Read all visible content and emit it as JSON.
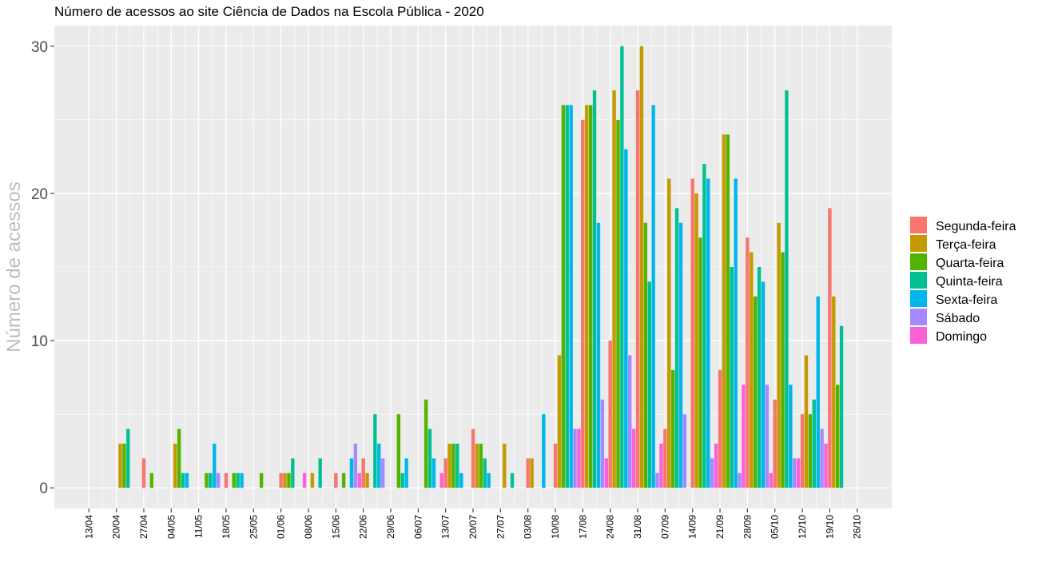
{
  "chart_data": {
    "type": "bar",
    "title": "Número de acessos ao site Ciência de Dados na Escola Pública - 2020",
    "xlabel": "",
    "ylabel": "Número de acessos",
    "ylim": [
      -1.4,
      31.4
    ],
    "yticks": [
      0,
      10,
      20,
      30
    ],
    "grid": true,
    "legend_position": "right",
    "x_start": "2020-04-13",
    "x_end": "2020-10-26",
    "x_tick_labels": [
      "13/04",
      "20/04",
      "27/04",
      "04/05",
      "11/05",
      "18/05",
      "25/05",
      "01/06",
      "08/06",
      "15/06",
      "22/06",
      "29/06",
      "06/07",
      "13/07",
      "20/07",
      "27/07",
      "03/08",
      "10/08",
      "17/08",
      "24/08",
      "31/08",
      "07/09",
      "14/09",
      "21/09",
      "28/09",
      "05/10",
      "12/10",
      "19/10",
      "26/10"
    ],
    "colors": {
      "Segunda-feira": "#F8766D",
      "Terça-feira": "#C49A00",
      "Quarta-feira": "#53B400",
      "Quinta-feira": "#00C094",
      "Sexta-feira": "#00B6EB",
      "Sábado": "#A58AFF",
      "Domingo": "#FB61D7"
    },
    "legend": [
      "Segunda-feira",
      "Terça-feira",
      "Quarta-feira",
      "Quinta-feira",
      "Sexta-feira",
      "Sábado",
      "Domingo"
    ],
    "points": [
      {
        "date": "2020-04-21",
        "weekday": "Terça-feira",
        "value": 3
      },
      {
        "date": "2020-04-22",
        "weekday": "Quarta-feira",
        "value": 3
      },
      {
        "date": "2020-04-23",
        "weekday": "Quinta-feira",
        "value": 4
      },
      {
        "date": "2020-04-27",
        "weekday": "Segunda-feira",
        "value": 2
      },
      {
        "date": "2020-04-29",
        "weekday": "Quarta-feira",
        "value": 1
      },
      {
        "date": "2020-05-05",
        "weekday": "Terça-feira",
        "value": 3
      },
      {
        "date": "2020-05-06",
        "weekday": "Quarta-feira",
        "value": 4
      },
      {
        "date": "2020-05-07",
        "weekday": "Quinta-feira",
        "value": 1
      },
      {
        "date": "2020-05-08",
        "weekday": "Sexta-feira",
        "value": 1
      },
      {
        "date": "2020-05-13",
        "weekday": "Quarta-feira",
        "value": 1
      },
      {
        "date": "2020-05-14",
        "weekday": "Quinta-feira",
        "value": 1
      },
      {
        "date": "2020-05-15",
        "weekday": "Sexta-feira",
        "value": 3
      },
      {
        "date": "2020-05-16",
        "weekday": "Sábado",
        "value": 1
      },
      {
        "date": "2020-05-18",
        "weekday": "Segunda-feira",
        "value": 1
      },
      {
        "date": "2020-05-20",
        "weekday": "Quarta-feira",
        "value": 1
      },
      {
        "date": "2020-05-21",
        "weekday": "Quinta-feira",
        "value": 1
      },
      {
        "date": "2020-05-22",
        "weekday": "Sexta-feira",
        "value": 1
      },
      {
        "date": "2020-05-27",
        "weekday": "Quarta-feira",
        "value": 1
      },
      {
        "date": "2020-06-01",
        "weekday": "Segunda-feira",
        "value": 1
      },
      {
        "date": "2020-06-02",
        "weekday": "Terça-feira",
        "value": 1
      },
      {
        "date": "2020-06-03",
        "weekday": "Quarta-feira",
        "value": 1
      },
      {
        "date": "2020-06-04",
        "weekday": "Quinta-feira",
        "value": 2
      },
      {
        "date": "2020-06-07",
        "weekday": "Domingo",
        "value": 1
      },
      {
        "date": "2020-06-09",
        "weekday": "Terça-feira",
        "value": 1
      },
      {
        "date": "2020-06-11",
        "weekday": "Quinta-feira",
        "value": 2
      },
      {
        "date": "2020-06-15",
        "weekday": "Segunda-feira",
        "value": 1
      },
      {
        "date": "2020-06-17",
        "weekday": "Quarta-feira",
        "value": 1
      },
      {
        "date": "2020-06-19",
        "weekday": "Sexta-feira",
        "value": 2
      },
      {
        "date": "2020-06-20",
        "weekday": "Sábado",
        "value": 3
      },
      {
        "date": "2020-06-21",
        "weekday": "Domingo",
        "value": 1
      },
      {
        "date": "2020-06-22",
        "weekday": "Segunda-feira",
        "value": 2
      },
      {
        "date": "2020-06-23",
        "weekday": "Terça-feira",
        "value": 1
      },
      {
        "date": "2020-06-25",
        "weekday": "Quinta-feira",
        "value": 5
      },
      {
        "date": "2020-06-26",
        "weekday": "Sexta-feira",
        "value": 3
      },
      {
        "date": "2020-06-27",
        "weekday": "Sábado",
        "value": 2
      },
      {
        "date": "2020-07-01",
        "weekday": "Quarta-feira",
        "value": 5
      },
      {
        "date": "2020-07-02",
        "weekday": "Quinta-feira",
        "value": 1
      },
      {
        "date": "2020-07-03",
        "weekday": "Sexta-feira",
        "value": 2
      },
      {
        "date": "2020-07-08",
        "weekday": "Quarta-feira",
        "value": 6
      },
      {
        "date": "2020-07-09",
        "weekday": "Quinta-feira",
        "value": 4
      },
      {
        "date": "2020-07-10",
        "weekday": "Sexta-feira",
        "value": 2
      },
      {
        "date": "2020-07-12",
        "weekday": "Domingo",
        "value": 1
      },
      {
        "date": "2020-07-13",
        "weekday": "Segunda-feira",
        "value": 2
      },
      {
        "date": "2020-07-14",
        "weekday": "Terça-feira",
        "value": 3
      },
      {
        "date": "2020-07-15",
        "weekday": "Quarta-feira",
        "value": 3
      },
      {
        "date": "2020-07-16",
        "weekday": "Quinta-feira",
        "value": 3
      },
      {
        "date": "2020-07-17",
        "weekday": "Sexta-feira",
        "value": 1
      },
      {
        "date": "2020-07-20",
        "weekday": "Segunda-feira",
        "value": 4
      },
      {
        "date": "2020-07-21",
        "weekday": "Terça-feira",
        "value": 3
      },
      {
        "date": "2020-07-22",
        "weekday": "Quarta-feira",
        "value": 3
      },
      {
        "date": "2020-07-23",
        "weekday": "Quinta-feira",
        "value": 2
      },
      {
        "date": "2020-07-24",
        "weekday": "Sexta-feira",
        "value": 1
      },
      {
        "date": "2020-07-28",
        "weekday": "Terça-feira",
        "value": 3
      },
      {
        "date": "2020-07-30",
        "weekday": "Quinta-feira",
        "value": 1
      },
      {
        "date": "2020-08-03",
        "weekday": "Segunda-feira",
        "value": 2
      },
      {
        "date": "2020-08-04",
        "weekday": "Terça-feira",
        "value": 2
      },
      {
        "date": "2020-08-07",
        "weekday": "Sexta-feira",
        "value": 5
      },
      {
        "date": "2020-08-10",
        "weekday": "Segunda-feira",
        "value": 3
      },
      {
        "date": "2020-08-11",
        "weekday": "Terça-feira",
        "value": 9
      },
      {
        "date": "2020-08-12",
        "weekday": "Quarta-feira",
        "value": 26
      },
      {
        "date": "2020-08-13",
        "weekday": "Quinta-feira",
        "value": 26
      },
      {
        "date": "2020-08-14",
        "weekday": "Sexta-feira",
        "value": 26
      },
      {
        "date": "2020-08-15",
        "weekday": "Sábado",
        "value": 4
      },
      {
        "date": "2020-08-16",
        "weekday": "Domingo",
        "value": 4
      },
      {
        "date": "2020-08-17",
        "weekday": "Segunda-feira",
        "value": 25
      },
      {
        "date": "2020-08-18",
        "weekday": "Terça-feira",
        "value": 26
      },
      {
        "date": "2020-08-19",
        "weekday": "Quarta-feira",
        "value": 26
      },
      {
        "date": "2020-08-20",
        "weekday": "Quinta-feira",
        "value": 27
      },
      {
        "date": "2020-08-21",
        "weekday": "Sexta-feira",
        "value": 18
      },
      {
        "date": "2020-08-22",
        "weekday": "Sábado",
        "value": 6
      },
      {
        "date": "2020-08-23",
        "weekday": "Domingo",
        "value": 2
      },
      {
        "date": "2020-08-24",
        "weekday": "Segunda-feira",
        "value": 10
      },
      {
        "date": "2020-08-25",
        "weekday": "Terça-feira",
        "value": 27
      },
      {
        "date": "2020-08-26",
        "weekday": "Quarta-feira",
        "value": 25
      },
      {
        "date": "2020-08-27",
        "weekday": "Quinta-feira",
        "value": 30
      },
      {
        "date": "2020-08-28",
        "weekday": "Sexta-feira",
        "value": 23
      },
      {
        "date": "2020-08-29",
        "weekday": "Sábado",
        "value": 9
      },
      {
        "date": "2020-08-30",
        "weekday": "Domingo",
        "value": 4
      },
      {
        "date": "2020-08-31",
        "weekday": "Segunda-feira",
        "value": 27
      },
      {
        "date": "2020-09-01",
        "weekday": "Terça-feira",
        "value": 30
      },
      {
        "date": "2020-09-02",
        "weekday": "Quarta-feira",
        "value": 18
      },
      {
        "date": "2020-09-03",
        "weekday": "Quinta-feira",
        "value": 14
      },
      {
        "date": "2020-09-04",
        "weekday": "Sexta-feira",
        "value": 26
      },
      {
        "date": "2020-09-05",
        "weekday": "Sábado",
        "value": 1
      },
      {
        "date": "2020-09-06",
        "weekday": "Domingo",
        "value": 3
      },
      {
        "date": "2020-09-07",
        "weekday": "Segunda-feira",
        "value": 4
      },
      {
        "date": "2020-09-08",
        "weekday": "Terça-feira",
        "value": 21
      },
      {
        "date": "2020-09-09",
        "weekday": "Quarta-feira",
        "value": 8
      },
      {
        "date": "2020-09-10",
        "weekday": "Quinta-feira",
        "value": 19
      },
      {
        "date": "2020-09-11",
        "weekday": "Sexta-feira",
        "value": 18
      },
      {
        "date": "2020-09-12",
        "weekday": "Sábado",
        "value": 5
      },
      {
        "date": "2020-09-14",
        "weekday": "Segunda-feira",
        "value": 21
      },
      {
        "date": "2020-09-15",
        "weekday": "Terça-feira",
        "value": 20
      },
      {
        "date": "2020-09-16",
        "weekday": "Quarta-feira",
        "value": 17
      },
      {
        "date": "2020-09-17",
        "weekday": "Quinta-feira",
        "value": 22
      },
      {
        "date": "2020-09-18",
        "weekday": "Sexta-feira",
        "value": 21
      },
      {
        "date": "2020-09-19",
        "weekday": "Sábado",
        "value": 2
      },
      {
        "date": "2020-09-20",
        "weekday": "Domingo",
        "value": 3
      },
      {
        "date": "2020-09-21",
        "weekday": "Segunda-feira",
        "value": 8
      },
      {
        "date": "2020-09-22",
        "weekday": "Terça-feira",
        "value": 24
      },
      {
        "date": "2020-09-23",
        "weekday": "Quarta-feira",
        "value": 24
      },
      {
        "date": "2020-09-24",
        "weekday": "Quinta-feira",
        "value": 15
      },
      {
        "date": "2020-09-25",
        "weekday": "Sexta-feira",
        "value": 21
      },
      {
        "date": "2020-09-26",
        "weekday": "Sábado",
        "value": 1
      },
      {
        "date": "2020-09-27",
        "weekday": "Domingo",
        "value": 7
      },
      {
        "date": "2020-09-28",
        "weekday": "Segunda-feira",
        "value": 17
      },
      {
        "date": "2020-09-29",
        "weekday": "Terça-feira",
        "value": 16
      },
      {
        "date": "2020-09-30",
        "weekday": "Quarta-feira",
        "value": 13
      },
      {
        "date": "2020-10-01",
        "weekday": "Quinta-feira",
        "value": 15
      },
      {
        "date": "2020-10-02",
        "weekday": "Sexta-feira",
        "value": 14
      },
      {
        "date": "2020-10-03",
        "weekday": "Sábado",
        "value": 7
      },
      {
        "date": "2020-10-04",
        "weekday": "Domingo",
        "value": 1
      },
      {
        "date": "2020-10-05",
        "weekday": "Segunda-feira",
        "value": 6
      },
      {
        "date": "2020-10-06",
        "weekday": "Terça-feira",
        "value": 18
      },
      {
        "date": "2020-10-07",
        "weekday": "Quarta-feira",
        "value": 16
      },
      {
        "date": "2020-10-08",
        "weekday": "Quinta-feira",
        "value": 27
      },
      {
        "date": "2020-10-09",
        "weekday": "Sexta-feira",
        "value": 7
      },
      {
        "date": "2020-10-10",
        "weekday": "Sábado",
        "value": 2
      },
      {
        "date": "2020-10-11",
        "weekday": "Domingo",
        "value": 2
      },
      {
        "date": "2020-10-12",
        "weekday": "Segunda-feira",
        "value": 5
      },
      {
        "date": "2020-10-13",
        "weekday": "Terça-feira",
        "value": 9
      },
      {
        "date": "2020-10-14",
        "weekday": "Quarta-feira",
        "value": 5
      },
      {
        "date": "2020-10-15",
        "weekday": "Quinta-feira",
        "value": 6
      },
      {
        "date": "2020-10-16",
        "weekday": "Sexta-feira",
        "value": 13
      },
      {
        "date": "2020-10-17",
        "weekday": "Sábado",
        "value": 4
      },
      {
        "date": "2020-10-18",
        "weekday": "Domingo",
        "value": 3
      },
      {
        "date": "2020-10-19",
        "weekday": "Segunda-feira",
        "value": 19
      },
      {
        "date": "2020-10-20",
        "weekday": "Terça-feira",
        "value": 13
      },
      {
        "date": "2020-10-21",
        "weekday": "Quarta-feira",
        "value": 7
      },
      {
        "date": "2020-10-22",
        "weekday": "Quinta-feira",
        "value": 11
      }
    ]
  }
}
